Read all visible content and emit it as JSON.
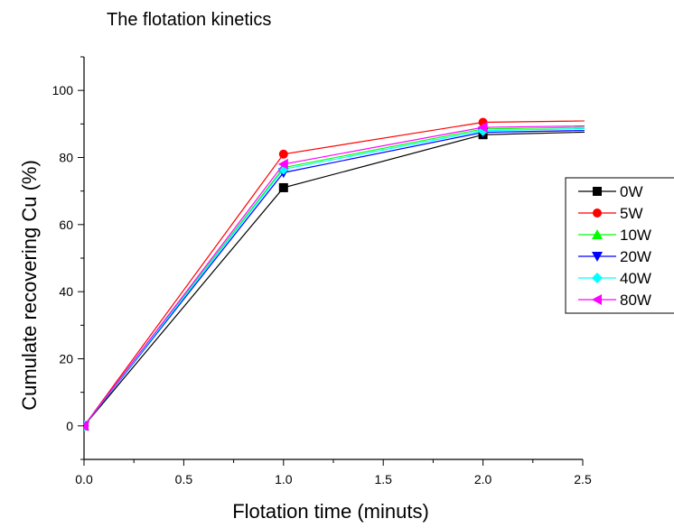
{
  "chart_data": {
    "type": "line",
    "title": "The flotation kinetics",
    "xlabel": "Flotation time (minuts)",
    "ylabel": "Cumulate recovering Cu (%)",
    "xlim": [
      0,
      2.5
    ],
    "ylim": [
      -10,
      110
    ],
    "xticks": [
      "0.0",
      "0.5",
      "1.0",
      "1.5",
      "2.0",
      "2.5"
    ],
    "yticks": [
      "0",
      "20",
      "40",
      "60",
      "80",
      "100"
    ],
    "legend_position": "right",
    "grid": false,
    "x": [
      0,
      1,
      2,
      3
    ],
    "series": [
      {
        "name": "0W",
        "values": [
          0,
          71,
          86.8,
          88.3
        ],
        "color": "#000000",
        "marker": "square"
      },
      {
        "name": "5W",
        "values": [
          0,
          81,
          90.5,
          91.3
        ],
        "color": "#ff0000",
        "marker": "circle"
      },
      {
        "name": "10W",
        "values": [
          0,
          77,
          88.5,
          89.5
        ],
        "color": "#00ff00",
        "marker": "triangle-up"
      },
      {
        "name": "20W",
        "values": [
          0,
          75.5,
          87.5,
          88.6
        ],
        "color": "#0000ff",
        "marker": "triangle-down"
      },
      {
        "name": "40W",
        "values": [
          0,
          76.5,
          88,
          89.2
        ],
        "color": "#00ffff",
        "marker": "diamond"
      },
      {
        "name": "80W",
        "values": [
          0,
          78,
          89,
          89.8
        ],
        "color": "#ff00ff",
        "marker": "triangle-left"
      }
    ]
  }
}
